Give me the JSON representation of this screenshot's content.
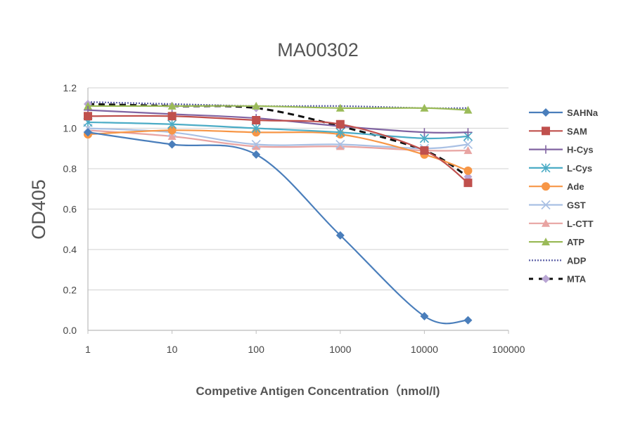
{
  "chart_data": {
    "type": "line",
    "title": "MA00302",
    "xlabel": "Competive Antigen Concentration（nmol/l)",
    "ylabel": "OD405",
    "x_scale": "log",
    "xlim": [
      1,
      100000
    ],
    "ylim": [
      0,
      1.2
    ],
    "x_ticks": [
      "1",
      "10",
      "100",
      "1000",
      "10000",
      "100000"
    ],
    "y_ticks": [
      "0.0",
      "0.2",
      "0.4",
      "0.6",
      "0.8",
      "1.0",
      "1.2"
    ],
    "grid": "horizontal",
    "legend": "right",
    "x": [
      1,
      10,
      100,
      1000,
      10000,
      33000
    ],
    "series": [
      {
        "name": "SAHNa",
        "color": "#4a7ebb",
        "marker": "diamond",
        "dash": "solid",
        "values": [
          0.98,
          0.92,
          0.87,
          0.47,
          0.07,
          0.05
        ]
      },
      {
        "name": "SAM",
        "color": "#c0504d",
        "marker": "square",
        "dash": "solid",
        "values": [
          1.06,
          1.06,
          1.04,
          1.02,
          0.89,
          0.73
        ]
      },
      {
        "name": "H-Cys",
        "color": "#8064a2",
        "marker": "plus",
        "dash": "solid",
        "values": [
          1.09,
          1.07,
          1.05,
          1.01,
          0.98,
          0.98
        ]
      },
      {
        "name": "L-Cys",
        "color": "#4bacc6",
        "marker": "star",
        "dash": "solid",
        "values": [
          1.03,
          1.02,
          1.0,
          0.98,
          0.95,
          0.96
        ]
      },
      {
        "name": "Ade",
        "color": "#f79646",
        "marker": "circle",
        "dash": "solid",
        "values": [
          0.97,
          0.99,
          0.98,
          0.97,
          0.87,
          0.79
        ]
      },
      {
        "name": "GST",
        "color": "#a9c0e4",
        "marker": "x",
        "dash": "solid",
        "values": [
          1.0,
          0.98,
          0.92,
          0.92,
          0.9,
          0.92
        ]
      },
      {
        "name": "L-CTT",
        "color": "#e8a4a2",
        "marker": "triangle",
        "dash": "solid",
        "values": [
          0.99,
          0.96,
          0.91,
          0.91,
          0.89,
          0.89
        ]
      },
      {
        "name": "ATP",
        "color": "#9bbb59",
        "marker": "triangle",
        "dash": "solid",
        "values": [
          1.11,
          1.11,
          1.11,
          1.1,
          1.1,
          1.09
        ]
      },
      {
        "name": "ADP",
        "color": "#5b5ea6",
        "marker": "none",
        "dash": "dotted",
        "values": [
          1.13,
          1.12,
          1.11,
          1.11,
          1.1,
          1.1
        ]
      },
      {
        "name": "MTA",
        "color": "#111111",
        "marker_color": "#b9a6d4",
        "marker": "diamond",
        "dash": "dashed",
        "values": [
          1.12,
          1.11,
          1.1,
          1.01,
          0.89,
          0.76
        ]
      }
    ]
  }
}
